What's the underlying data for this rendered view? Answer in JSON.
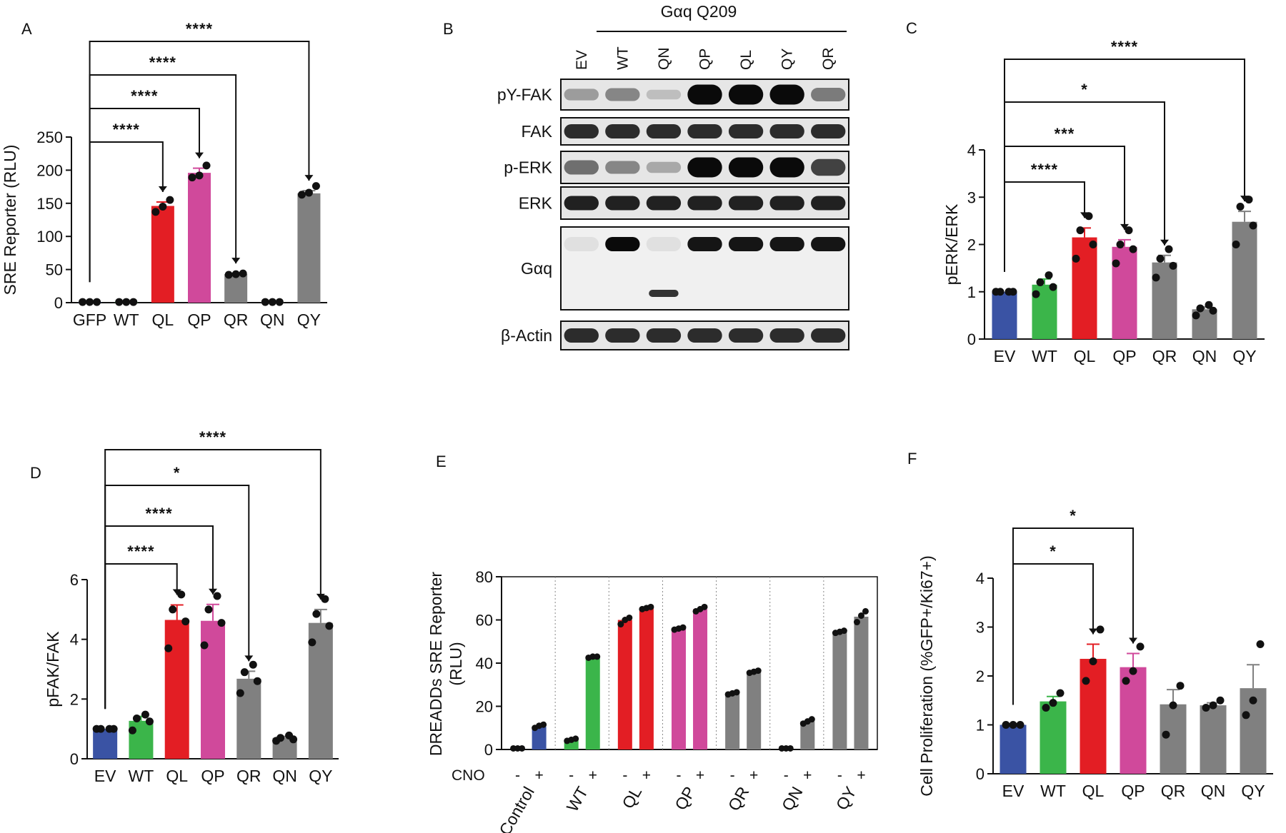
{
  "colors": {
    "EV": "#3a53a4",
    "GFP": "#3a53a4",
    "Control": "#3a53a4",
    "WT": "#3bb54a",
    "QL": "#e31e24",
    "QP": "#d0499b",
    "QR": "#808080",
    "QN": "#808080",
    "QY": "#808080"
  },
  "chart_data": [
    {
      "panel": "A",
      "type": "bar",
      "categories": [
        "GFP",
        "WT",
        "QL",
        "QP",
        "QR",
        "QN",
        "QY"
      ],
      "values": [
        1,
        1,
        146,
        196,
        43,
        1,
        165
      ],
      "errors": [
        0,
        0,
        6,
        7,
        1,
        0,
        4
      ],
      "points": [
        [
          1,
          1,
          1
        ],
        [
          1,
          1,
          1
        ],
        [
          137,
          145,
          155
        ],
        [
          189,
          192,
          207
        ],
        [
          42,
          43,
          44
        ],
        [
          1,
          1,
          1
        ],
        [
          163,
          166,
          176
        ]
      ],
      "ylabel": "SRE Reporter (RLU)",
      "ylim": [
        0,
        250
      ],
      "yticks": [
        "0",
        "50",
        "100",
        "150",
        "200",
        "250"
      ],
      "comparisons": [
        {
          "from": "GFP",
          "to": "QL",
          "label": "****"
        },
        {
          "from": "GFP",
          "to": "QP",
          "label": "****"
        },
        {
          "from": "GFP",
          "to": "QR",
          "label": "****"
        },
        {
          "from": "GFP",
          "to": "QY",
          "label": "****"
        }
      ]
    },
    {
      "panel": "C",
      "type": "bar",
      "categories": [
        "EV",
        "WT",
        "QL",
        "QP",
        "QR",
        "QN",
        "QY"
      ],
      "values": [
        1.0,
        1.15,
        2.15,
        1.95,
        1.62,
        0.63,
        2.48
      ],
      "errors": [
        0,
        0.12,
        0.2,
        0.15,
        0.15,
        0.05,
        0.22
      ],
      "points": [
        [
          1,
          1,
          1,
          1
        ],
        [
          0.95,
          1.1,
          1.2,
          1.35
        ],
        [
          1.7,
          2.0,
          2.3,
          2.6
        ],
        [
          1.6,
          1.9,
          2.0,
          2.3
        ],
        [
          1.3,
          1.55,
          1.7,
          1.9
        ],
        [
          0.5,
          0.6,
          0.65,
          0.72
        ],
        [
          2.0,
          2.4,
          2.8,
          2.95
        ]
      ],
      "ylabel": "pERK/ERK",
      "ylim": [
        0,
        4
      ],
      "yticks": [
        "0",
        "1",
        "2",
        "3",
        "4"
      ],
      "comparisons": [
        {
          "from": "EV",
          "to": "QL",
          "label": "****"
        },
        {
          "from": "EV",
          "to": "QP",
          "label": "***"
        },
        {
          "from": "EV",
          "to": "QR",
          "label": "*"
        },
        {
          "from": "EV",
          "to": "QY",
          "label": "****"
        }
      ]
    },
    {
      "panel": "D",
      "type": "bar",
      "categories": [
        "EV",
        "WT",
        "QL",
        "QP",
        "QR",
        "QN",
        "QY"
      ],
      "values": [
        1.0,
        1.27,
        4.65,
        4.62,
        2.68,
        0.7,
        4.55
      ],
      "errors": [
        0,
        0.15,
        0.5,
        0.55,
        0.25,
        0.05,
        0.45
      ],
      "points": [
        [
          1,
          1,
          1,
          1
        ],
        [
          0.95,
          1.25,
          1.35,
          1.48
        ],
        [
          3.7,
          4.6,
          5.0,
          5.5
        ],
        [
          3.8,
          4.55,
          5.0,
          5.45
        ],
        [
          2.2,
          2.6,
          2.9,
          3.15
        ],
        [
          0.6,
          0.65,
          0.7,
          0.78
        ],
        [
          3.9,
          4.45,
          4.85,
          5.35
        ]
      ],
      "ylabel": "pFAK/FAK",
      "ylim": [
        0,
        6
      ],
      "yticks": [
        "0",
        "2",
        "4",
        "6"
      ],
      "comparisons": [
        {
          "from": "EV",
          "to": "QL",
          "label": "****"
        },
        {
          "from": "EV",
          "to": "QP",
          "label": "****"
        },
        {
          "from": "EV",
          "to": "QR",
          "label": "*"
        },
        {
          "from": "EV",
          "to": "QY",
          "label": "****"
        }
      ]
    },
    {
      "panel": "E",
      "type": "bar",
      "groups": [
        "Control",
        "WT",
        "QL",
        "QP",
        "QR",
        "QN",
        "QY"
      ],
      "treatment_label": "CNO",
      "treatments": [
        "-",
        "+"
      ],
      "values_minus": [
        0.5,
        4.5,
        60,
        56,
        26,
        0.5,
        54.5
      ],
      "values_plus": [
        10.5,
        43,
        65.5,
        65,
        36,
        13,
        61.5
      ],
      "errors_minus": [
        0,
        1,
        1.5,
        0.5,
        0.5,
        0,
        0.5
      ],
      "errors_plus": [
        1,
        0.3,
        0.5,
        1,
        0.5,
        1,
        2
      ],
      "points_minus": [
        [
          0.5,
          0.5,
          0.5
        ],
        [
          4,
          4.5,
          5
        ],
        [
          58,
          60,
          61
        ],
        [
          55.5,
          56,
          56.5
        ],
        [
          25.5,
          26,
          26.5
        ],
        [
          0.5,
          0.5,
          0.5
        ],
        [
          54,
          54.5,
          55
        ]
      ],
      "points_plus": [
        [
          10,
          11,
          11.5
        ],
        [
          42.5,
          43,
          43
        ],
        [
          65,
          65.5,
          66
        ],
        [
          64,
          65,
          66
        ],
        [
          35.5,
          36,
          36.5
        ],
        [
          12,
          13,
          14
        ],
        [
          59,
          62,
          64
        ]
      ],
      "ylabel": "DREADDs SRE Reporter (RLU)",
      "ylim": [
        0,
        80
      ],
      "yticks": [
        "0",
        "20",
        "40",
        "60",
        "80"
      ]
    },
    {
      "panel": "F",
      "type": "bar",
      "categories": [
        "EV",
        "WT",
        "QL",
        "QP",
        "QR",
        "QN",
        "QY"
      ],
      "values": [
        1.0,
        1.48,
        2.35,
        2.18,
        1.42,
        1.4,
        1.75
      ],
      "errors": [
        0,
        0.1,
        0.3,
        0.28,
        0.3,
        0.05,
        0.48
      ],
      "points": [
        [
          1,
          1,
          1
        ],
        [
          1.35,
          1.45,
          1.65
        ],
        [
          1.9,
          2.3,
          2.95
        ],
        [
          1.9,
          2.1,
          2.6
        ],
        [
          0.8,
          1.4,
          1.8
        ],
        [
          1.35,
          1.4,
          1.5
        ],
        [
          1.2,
          1.5,
          2.65
        ]
      ],
      "ylabel": "Cell Proliferation (%GFP+/Ki67+)",
      "ylim": [
        0,
        4
      ],
      "yticks": [
        "0",
        "1",
        "2",
        "3",
        "4"
      ],
      "comparisons": [
        {
          "from": "EV",
          "to": "QL",
          "label": "*"
        },
        {
          "from": "EV",
          "to": "QP",
          "label": "*"
        }
      ]
    }
  ],
  "blot": {
    "panel": "B",
    "header": "Gαq  Q209",
    "lanes": [
      "EV",
      "WT",
      "QN",
      "QP",
      "QL",
      "QY",
      "QR"
    ],
    "rows": [
      {
        "label": "pY-FAK",
        "intensity": [
          0.35,
          0.45,
          0.2,
          1.0,
          1.0,
          1.0,
          0.5
        ]
      },
      {
        "label": "FAK",
        "intensity": [
          0.85,
          0.85,
          0.85,
          0.85,
          0.85,
          0.85,
          0.85
        ]
      },
      {
        "label": "p-ERK",
        "intensity": [
          0.55,
          0.45,
          0.3,
          1.0,
          1.0,
          1.0,
          0.75
        ]
      },
      {
        "label": "ERK",
        "intensity": [
          0.9,
          0.9,
          0.9,
          0.9,
          0.9,
          0.9,
          0.9
        ]
      },
      {
        "label": "Gαq",
        "intensity": [
          0.05,
          1.0,
          0.05,
          0.95,
          0.95,
          0.95,
          0.95
        ]
      },
      {
        "label": "β-Actin",
        "intensity": [
          0.85,
          0.85,
          0.85,
          0.85,
          0.85,
          0.85,
          0.85
        ]
      }
    ]
  }
}
